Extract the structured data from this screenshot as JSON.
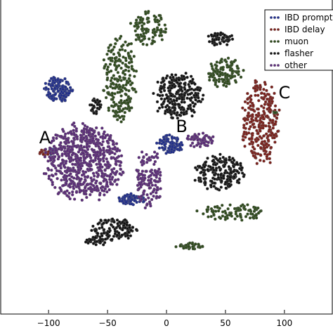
{
  "chart_data": {
    "type": "scatter",
    "xlim": [
      -140,
      140
    ],
    "ylim": [
      -140,
      140
    ],
    "xticks": [
      {
        "value": -100,
        "label": "−100"
      },
      {
        "value": -50,
        "label": "−50"
      },
      {
        "value": 0,
        "label": "0"
      },
      {
        "value": 50,
        "label": "50"
      },
      {
        "value": 100,
        "label": "100"
      }
    ],
    "legend_position": "top-right",
    "series": [
      {
        "name": "IBD prompt",
        "color": "#1f2d8c",
        "clusters": [
          {
            "cx": -92,
            "cy": 60,
            "rx": 14,
            "ry": 12,
            "n": 140
          },
          {
            "cx": 3,
            "cy": 11,
            "rx": 11,
            "ry": 9,
            "n": 90
          },
          {
            "cx": -30,
            "cy": -38,
            "rx": 13,
            "ry": 5,
            "n": 70
          },
          {
            "cx": -97,
            "cy": 5,
            "rx": 4,
            "ry": 3,
            "n": 15
          }
        ]
      },
      {
        "name": "IBD delay",
        "color": "#7a1f1a",
        "clusters": [
          {
            "cx": 80,
            "cy": 30,
            "rx": 17,
            "ry": 40,
            "n": 280
          },
          {
            "cx": -102,
            "cy": 4,
            "rx": 6,
            "ry": 3,
            "n": 16
          }
        ]
      },
      {
        "name": "muon",
        "color": "#2e4a1c",
        "clusters": [
          {
            "cx": -40,
            "cy": 70,
            "rx": 15,
            "ry": 40,
            "n": 230
          },
          {
            "cx": -15,
            "cy": 115,
            "rx": 16,
            "ry": 15,
            "n": 100
          },
          {
            "cx": 50,
            "cy": 75,
            "rx": 16,
            "ry": 14,
            "n": 120
          },
          {
            "cx": 55,
            "cy": -50,
            "rx": 30,
            "ry": 8,
            "n": 90
          },
          {
            "cx": 20,
            "cy": -80,
            "rx": 12,
            "ry": 3,
            "n": 40
          },
          {
            "cx": 92,
            "cy": 40,
            "rx": 2,
            "ry": 2,
            "n": 4
          }
        ]
      },
      {
        "name": "flasher",
        "color": "#111111",
        "clusters": [
          {
            "cx": 10,
            "cy": 55,
            "rx": 22,
            "ry": 22,
            "n": 260
          },
          {
            "cx": 45,
            "cy": -15,
            "rx": 22,
            "ry": 17,
            "n": 200
          },
          {
            "cx": -45,
            "cy": -65,
            "rx": 22,
            "ry": 11,
            "n": 130
          },
          {
            "cx": 45,
            "cy": 105,
            "rx": 12,
            "ry": 6,
            "n": 60
          },
          {
            "cx": -60,
            "cy": 45,
            "rx": 5,
            "ry": 9,
            "n": 35
          },
          {
            "cx": -60,
            "cy": -75,
            "rx": 10,
            "ry": 5,
            "n": 30
          }
        ]
      },
      {
        "name": "other",
        "color": "#5a2a78",
        "clusters": [
          {
            "cx": -70,
            "cy": -5,
            "rx": 35,
            "ry": 35,
            "n": 700
          },
          {
            "cx": -15,
            "cy": -20,
            "rx": 12,
            "ry": 28,
            "n": 130
          },
          {
            "cx": 28,
            "cy": 15,
            "rx": 12,
            "ry": 7,
            "n": 60
          }
        ]
      }
    ],
    "annotations": [
      {
        "text": "A",
        "x": -108,
        "y": 12
      },
      {
        "text": "B",
        "x": 8,
        "y": 22
      },
      {
        "text": "C",
        "x": 95,
        "y": 52
      }
    ]
  }
}
